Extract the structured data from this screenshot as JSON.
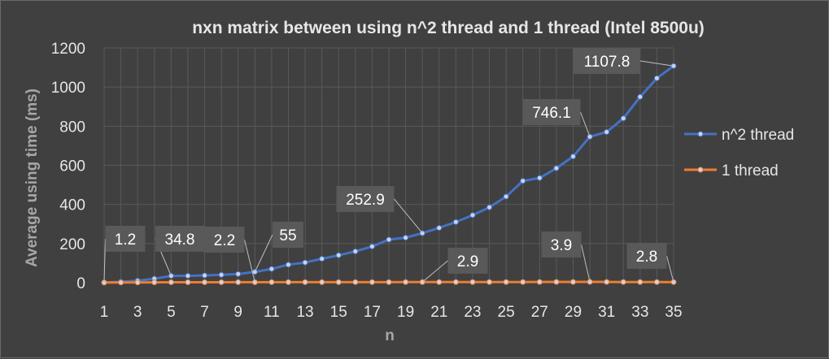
{
  "chart_data": {
    "type": "line",
    "title": "nxn matrix between  using  n^2  thread and 1 thread (Intel 8500u)",
    "xlabel": "n",
    "ylabel": "Average using  time (ms)",
    "x": [
      1,
      2,
      3,
      4,
      5,
      6,
      7,
      8,
      9,
      10,
      11,
      12,
      13,
      14,
      15,
      16,
      17,
      18,
      19,
      20,
      21,
      22,
      23,
      24,
      25,
      26,
      27,
      28,
      29,
      30,
      31,
      32,
      33,
      34,
      35
    ],
    "xticks": [
      1,
      3,
      5,
      7,
      9,
      11,
      13,
      15,
      17,
      19,
      21,
      23,
      25,
      27,
      29,
      31,
      33,
      35
    ],
    "ylim": [
      0,
      1200
    ],
    "yticks": [
      0,
      200,
      400,
      600,
      800,
      1000,
      1200
    ],
    "grid": true,
    "legend_position": "right",
    "series": [
      {
        "name": "n^2 thread",
        "color": "#4472c4",
        "values": [
          1.2,
          4,
          10,
          20,
          34.8,
          35,
          37,
          40,
          44,
          55,
          70,
          92,
          103,
          122,
          140,
          160,
          185,
          220,
          230,
          252.9,
          280,
          310,
          345,
          385,
          440,
          520,
          535,
          585,
          645,
          746.1,
          770,
          840,
          950,
          1045,
          1107.8
        ]
      },
      {
        "name": "1 thread",
        "color": "#ed7d31",
        "values": [
          0.5,
          0.8,
          1.2,
          1.5,
          2.0,
          2.1,
          2.2,
          2.3,
          2.4,
          2.2,
          2.5,
          2.6,
          2.6,
          2.7,
          2.7,
          2.8,
          2.8,
          2.8,
          2.9,
          2.9,
          2.9,
          3.0,
          3.0,
          3.1,
          3.2,
          3.3,
          3.4,
          3.5,
          3.7,
          3.9,
          3.6,
          3.3,
          3.0,
          2.9,
          2.8
        ]
      }
    ],
    "data_labels": [
      {
        "series": 0,
        "index": 0,
        "text": "1.2"
      },
      {
        "series": 0,
        "index": 4,
        "text": "34.8"
      },
      {
        "series": 1,
        "index": 9,
        "text": "2.2"
      },
      {
        "series": 0,
        "index": 9,
        "text": "55"
      },
      {
        "series": 0,
        "index": 19,
        "text": "252.9"
      },
      {
        "series": 1,
        "index": 19,
        "text": "2.9"
      },
      {
        "series": 0,
        "index": 29,
        "text": "746.1"
      },
      {
        "series": 1,
        "index": 29,
        "text": "3.9"
      },
      {
        "series": 1,
        "index": 34,
        "text": "2.8"
      },
      {
        "series": 0,
        "index": 34,
        "text": "1107.8"
      }
    ]
  }
}
